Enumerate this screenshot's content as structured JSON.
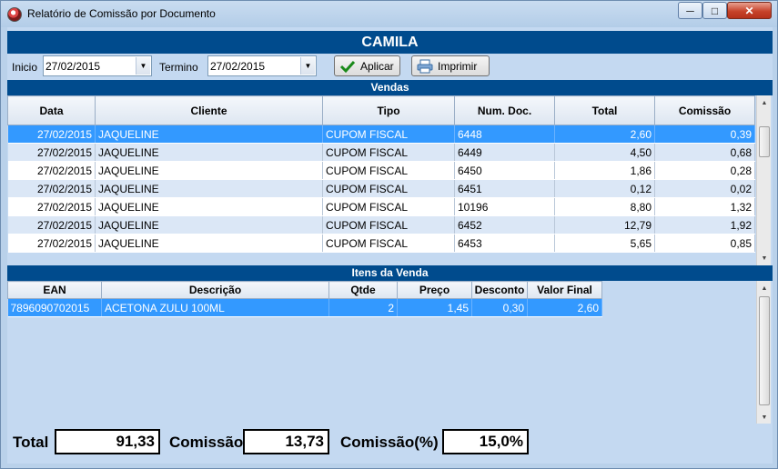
{
  "window": {
    "title": "Relatório de Comissão por  Documento"
  },
  "header": {
    "vendor_name": "CAMILA"
  },
  "filters": {
    "inicio_label": "Inicio",
    "inicio_value": "27/02/2015",
    "termino_label": "Termino",
    "termino_value": "27/02/2015",
    "aplicar_label": "Aplicar",
    "imprimir_label": "Imprimir"
  },
  "vendas": {
    "title": "Vendas",
    "columns": [
      "Data",
      "Cliente",
      "Tipo",
      "Num. Doc.",
      "Total",
      "Comissão"
    ],
    "rows": [
      {
        "data": "27/02/2015",
        "cliente": "JAQUELINE",
        "tipo": "CUPOM FISCAL",
        "num_doc": "6448",
        "total": "2,60",
        "comissao": "0,39"
      },
      {
        "data": "27/02/2015",
        "cliente": "JAQUELINE",
        "tipo": "CUPOM FISCAL",
        "num_doc": "6449",
        "total": "4,50",
        "comissao": "0,68"
      },
      {
        "data": "27/02/2015",
        "cliente": "JAQUELINE",
        "tipo": "CUPOM FISCAL",
        "num_doc": "6450",
        "total": "1,86",
        "comissao": "0,28"
      },
      {
        "data": "27/02/2015",
        "cliente": "JAQUELINE",
        "tipo": "CUPOM FISCAL",
        "num_doc": "6451",
        "total": "0,12",
        "comissao": "0,02"
      },
      {
        "data": "27/02/2015",
        "cliente": "JAQUELINE",
        "tipo": "CUPOM FISCAL",
        "num_doc": "10196",
        "total": "8,80",
        "comissao": "1,32"
      },
      {
        "data": "27/02/2015",
        "cliente": "JAQUELINE",
        "tipo": "CUPOM FISCAL",
        "num_doc": "6452",
        "total": "12,79",
        "comissao": "1,92"
      },
      {
        "data": "27/02/2015",
        "cliente": "JAQUELINE",
        "tipo": "CUPOM FISCAL",
        "num_doc": "6453",
        "total": "5,65",
        "comissao": "0,85"
      }
    ]
  },
  "itens": {
    "title": "Itens da Venda",
    "columns": [
      "EAN",
      "Descrição",
      "Qtde",
      "Preço",
      "Desconto",
      "Valor Final"
    ],
    "rows": [
      {
        "ean": "7896090702015",
        "descricao": "ACETONA ZULU 100ML",
        "qtde": "2",
        "preco": "1,45",
        "desconto": "0,30",
        "valor_final": "2,60"
      }
    ]
  },
  "totals": {
    "total_label": "Total",
    "total_value": "91,33",
    "comissao_label": "Comissão",
    "comissao_value": "13,73",
    "comissao_pct_label": "Comissão(%)",
    "comissao_pct_value": "15,0%"
  },
  "icons": {
    "app": "app-icon",
    "minimize": "minimize-icon",
    "maximize": "maximize-icon",
    "close": "close-icon",
    "aplicar": "check-icon",
    "imprimir": "printer-icon"
  },
  "colors": {
    "header_bar": "#004b8d",
    "selection": "#3399ff",
    "background": "#c4d9f1"
  }
}
